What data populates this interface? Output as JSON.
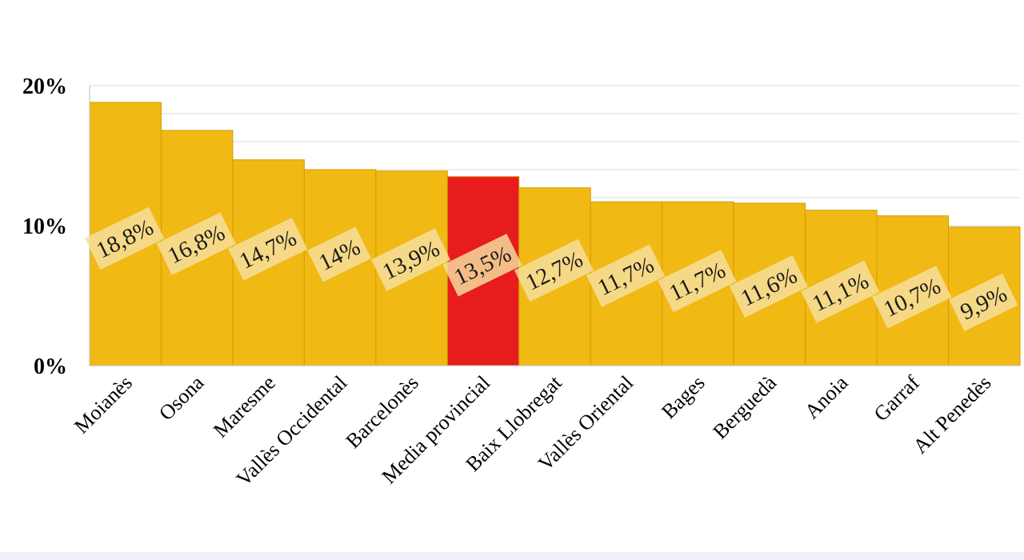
{
  "chart_data": {
    "type": "bar",
    "title": "",
    "xlabel": "",
    "ylabel": "",
    "categories": [
      "Moianès",
      "Osona",
      "Maresme",
      "Vallès Occidental",
      "Barcelonès",
      "Media provincial",
      "Baix Llobregat",
      "Vallès Oriental",
      "Bages",
      "Berguedà",
      "Anoia",
      "Garraf",
      "Alt Penedès"
    ],
    "values": [
      18.8,
      16.8,
      14.7,
      14.0,
      13.9,
      13.5,
      12.7,
      11.7,
      11.7,
      11.6,
      11.1,
      10.7,
      9.9
    ],
    "data_labels": [
      "18,8%",
      "16,8%",
      "14,7%",
      "14%",
      "13,9%",
      "13,5%",
      "12,7%",
      "11,7%",
      "11,7%",
      "11,6%",
      "11,1%",
      "10,7%",
      "9,9%"
    ],
    "ylim": [
      0,
      20
    ],
    "yticks": [
      0,
      10,
      20
    ],
    "ytick_labels": [
      "0%",
      "10%",
      "20%"
    ],
    "grid": true,
    "legend": "none",
    "colors": {
      "bar": "#f0b914",
      "highlight": "#e81c1c",
      "highlight_category": "Media provincial",
      "label_background": "#f7e0a0"
    }
  }
}
